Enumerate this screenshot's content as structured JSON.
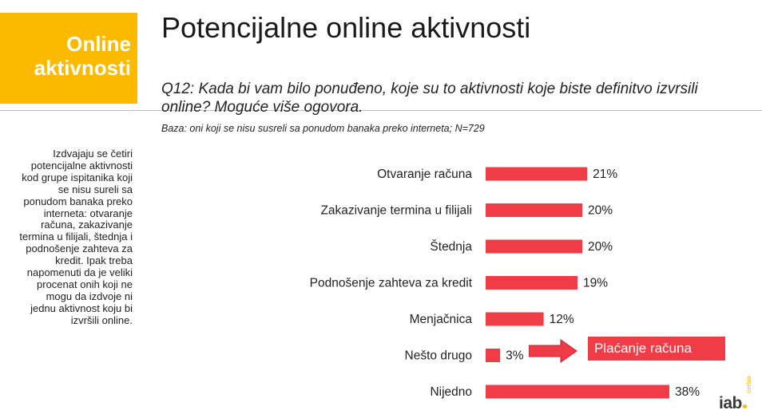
{
  "section": {
    "line1": "Online",
    "line2": "aktivnosti"
  },
  "title": "Potencijalne online aktivnosti",
  "question": "Q12: Kada bi vam bilo ponuđeno, koje su to aktivnosti koje biste definitvo izvrsili online? Moguće više ogovora.",
  "base": "Baza: oni koji se nisu susreli sa ponudom banaka preko interneta; N=729",
  "side_text": "Izdvajaju se četiri potencijalne aktivnosti kod grupe ispitanika koji se nisu sureli sa ponudom banaka preko interneta: otvaranje računa, zakazivanje termina u filijali, štednja i podnošenje zahteva za kredit. Ipak treba napomenuti da je veliki procenat onih koji ne mogu da izdvoje ni jednu aktivnost  koju bi izvršili online.",
  "callout": {
    "label": "Plaćanje računa"
  },
  "logo": {
    "text": "iab",
    "sub": "serbia"
  },
  "colors": {
    "bar": "#f03c46",
    "accent": "#fbb900",
    "callout": "#f03c46"
  },
  "chart_data": {
    "type": "bar",
    "orientation": "horizontal",
    "categories": [
      "Otvaranje računa",
      "Zakazivanje termina u filijali",
      "Štednja",
      "Podnošenje zahteva za kredit",
      "Menjačnica",
      "Nešto drugo",
      "Nijedno"
    ],
    "values": [
      21,
      20,
      20,
      19,
      12,
      3,
      38
    ],
    "value_labels": [
      "21%",
      "20%",
      "20%",
      "19%",
      "12%",
      "3%",
      "38%"
    ],
    "xlim": [
      0,
      38
    ],
    "grid": false,
    "legend": "none"
  }
}
